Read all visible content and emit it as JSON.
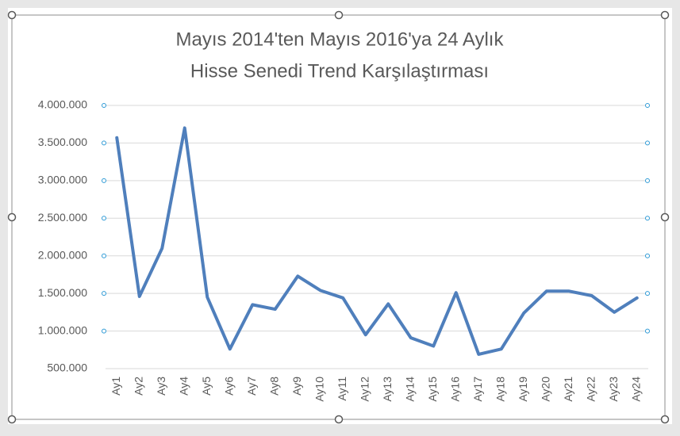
{
  "chart_data": {
    "type": "line",
    "title": [
      "Mayıs 2014'ten Mayıs 2016'ya 24 Aylık",
      "Hisse Senedi Trend Karşılaştırması"
    ],
    "categories": [
      "Ay1",
      "Ay2",
      "Ay3",
      "Ay4",
      "Ay5",
      "Ay6",
      "Ay7",
      "Ay8",
      "Ay9",
      "Ay10",
      "Ay11",
      "Ay12",
      "Ay13",
      "Ay14",
      "Ay15",
      "Ay16",
      "Ay17",
      "Ay18",
      "Ay19",
      "Ay20",
      "Ay21",
      "Ay22",
      "Ay23",
      "Ay24"
    ],
    "values": [
      3570000,
      1460000,
      2100000,
      3700000,
      1450000,
      760000,
      1350000,
      1290000,
      1730000,
      1540000,
      1440000,
      950000,
      1360000,
      910000,
      800000,
      1510000,
      690000,
      760000,
      1240000,
      1530000,
      1530000,
      1470000,
      1250000,
      1440000
    ],
    "color": "#4f7fbc",
    "ylim": [
      500000,
      4000000
    ],
    "yticks": [
      {
        "value": 500000,
        "label": "500.000"
      },
      {
        "value": 1000000,
        "label": "1.000.000"
      },
      {
        "value": 1500000,
        "label": "1.500.000"
      },
      {
        "value": 2000000,
        "label": "2.000.000"
      },
      {
        "value": 2500000,
        "label": "2.500.000"
      },
      {
        "value": 3000000,
        "label": "3.000.000"
      },
      {
        "value": 3500000,
        "label": "3.500.000"
      },
      {
        "value": 4000000,
        "label": "4.000.000"
      }
    ],
    "grid": true
  }
}
